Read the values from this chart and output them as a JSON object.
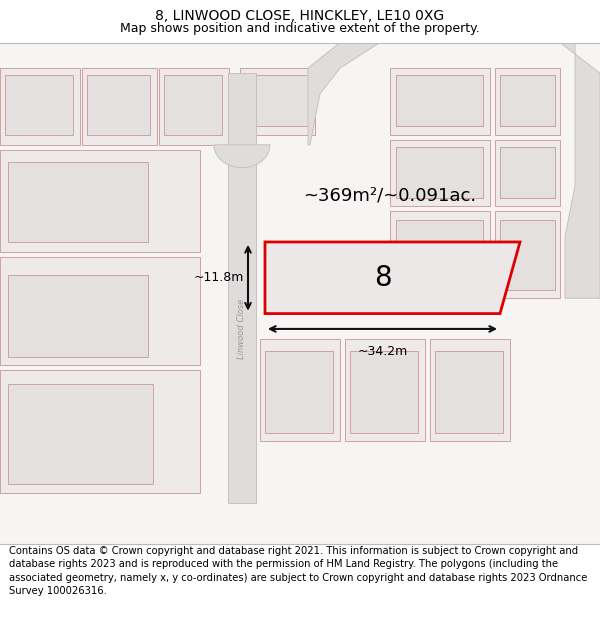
{
  "title": "8, LINWOOD CLOSE, HINCKLEY, LE10 0XG",
  "subtitle": "Map shows position and indicative extent of the property.",
  "footer": "Contains OS data © Crown copyright and database right 2021. This information is subject to Crown copyright and database rights 2023 and is reproduced with the permission of HM Land Registry. The polygons (including the associated geometry, namely x, y co-ordinates) are subject to Crown copyright and database rights 2023 Ordnance Survey 100026316.",
  "map_bg": "#f7f4f4",
  "plot_outline_color": "#dd0000",
  "plot_fill_color": "#e8e4e4",
  "road_fill": "#e0dcdc",
  "road_edge": "#c8c0c0",
  "block_fill": "#eeeaea",
  "block_edge": "#d0a0a0",
  "inner_fill": "#e4e0e0",
  "dim_color": "#111111",
  "area_text": "~369m²/~0.091ac.",
  "plot_label": "8",
  "dim_width": "~34.2m",
  "dim_height": "~11.8m",
  "road_label": "Linwood Close",
  "title_fontsize": 10,
  "subtitle_fontsize": 9,
  "footer_fontsize": 7.2
}
